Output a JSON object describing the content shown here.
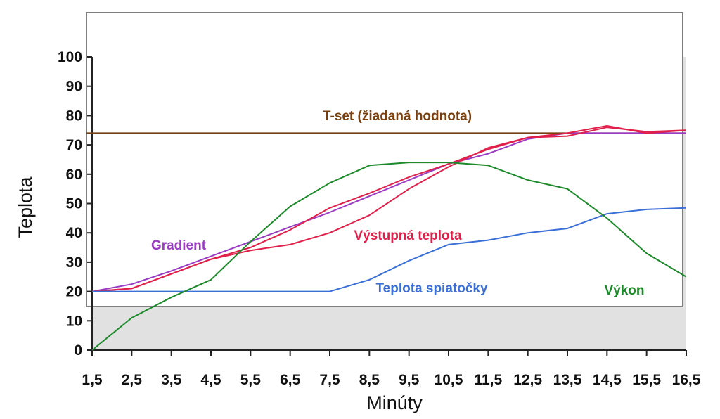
{
  "chart_data": {
    "type": "line",
    "xlabel": "Minúty",
    "ylabel": "Teplota",
    "x": [
      "1,5",
      "2,5",
      "3,5",
      "4,5",
      "5,5",
      "6,5",
      "7,5",
      "8,5",
      "9,5",
      "10,5",
      "11,5",
      "12,5",
      "13,5",
      "14,5",
      "15,5",
      "16,5"
    ],
    "y_ticks": [
      "0",
      "10",
      "20",
      "30",
      "40",
      "50",
      "60",
      "70",
      "80",
      "90",
      "100"
    ],
    "ylim": [
      0,
      100
    ],
    "grid": false,
    "colors": {
      "background_band": "#e1e1e1",
      "frame": "#7f7f7f",
      "axis": "#222222"
    },
    "series": [
      {
        "name": "T-set (žiadaná hodnota)",
        "color": "#7a3f0e",
        "values": [
          74,
          74,
          74,
          74,
          74,
          74,
          74,
          74,
          74,
          74,
          74,
          74,
          74,
          74,
          74,
          74
        ]
      },
      {
        "name": "Gradient",
        "color": "#9a3bc4",
        "values": [
          20,
          22.5,
          27,
          32,
          37,
          42,
          47,
          52.5,
          58,
          63.5,
          67,
          72,
          74,
          74,
          74,
          74
        ]
      },
      {
        "name": "Výstupná teplota",
        "color": "#e0204a",
        "values": [
          20,
          21,
          26,
          31,
          35,
          41,
          48.5,
          53.5,
          59,
          63.5,
          68.5,
          72.5,
          73,
          76,
          74.5,
          75
        ],
        "values_second_trace": [
          20,
          21,
          26,
          31,
          34,
          36,
          40,
          46,
          55,
          62.5,
          69,
          72.5,
          74,
          76.5,
          74,
          75
        ]
      },
      {
        "name": "Teplota spiatočky",
        "color": "#3b6fd8",
        "values": [
          20,
          20,
          20,
          20,
          20,
          20,
          20,
          24,
          30.5,
          36,
          37.5,
          40,
          41.5,
          46.5,
          48,
          48.5
        ]
      },
      {
        "name": "Výkon",
        "color": "#1c8a2a",
        "values": [
          0,
          11,
          18,
          24,
          37,
          49,
          57,
          63,
          64,
          64,
          63,
          58,
          55,
          45,
          33,
          25
        ]
      }
    ]
  }
}
